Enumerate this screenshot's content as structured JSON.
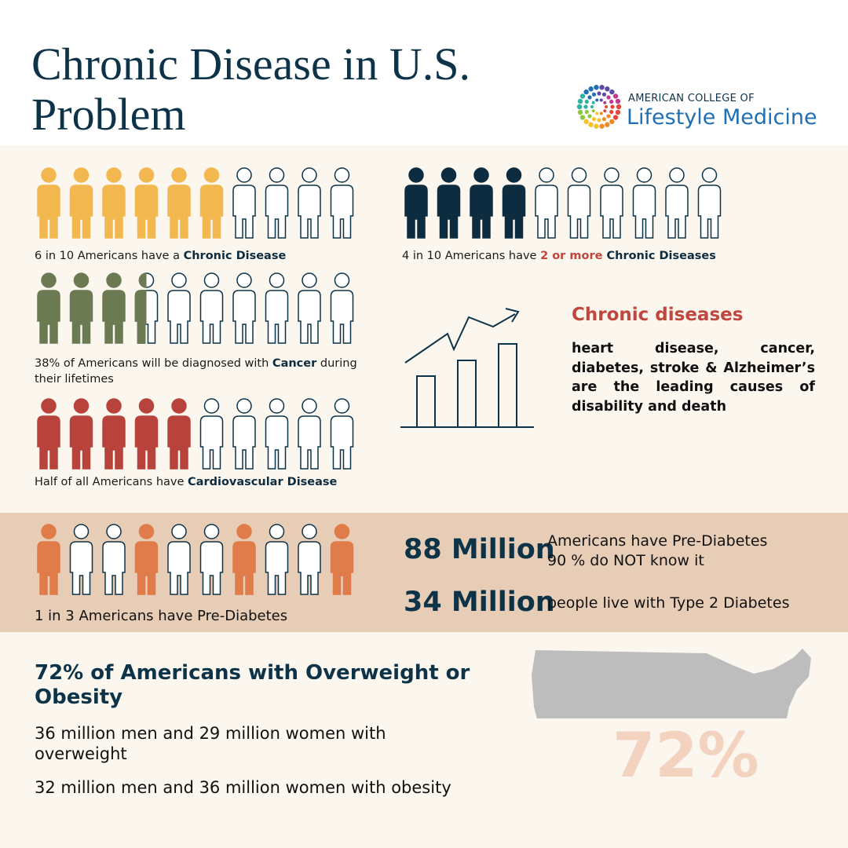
{
  "header": {
    "title_lines": [
      "Chronic Disease in U.S.",
      "Problem"
    ],
    "logo": {
      "line1": "AMERICAN COLLEGE OF",
      "line2": "Lifestyle Medicine"
    }
  },
  "stats": [
    {
      "caption": [
        "6 in 10 Americans have a ",
        "Chronic Disease"
      ]
    },
    {
      "caption": [
        "4 in 10 Americans have ",
        "2 or more",
        " Chronic Diseases"
      ]
    },
    {
      "caption": [
        "38% of Americans will be diagnosed with ",
        "Cancer",
        " during their lifetimes"
      ]
    },
    {
      "caption": [
        "Half of all Americans have ",
        "Cardiovascular Disease"
      ]
    }
  ],
  "chronic": {
    "heading": "Chronic diseases",
    "text": "heart disease, cancer, diabetes, stroke & Alzheimer’s are the leading causes of disability and death"
  },
  "diabetes": {
    "caption": "1 in 3 Americans have Pre-Diabetes",
    "facts": [
      {
        "figure": "88 Million",
        "lines": [
          "Americans have Pre-Diabetes",
          "90 % do NOT know it"
        ]
      },
      {
        "figure": "34 Million",
        "lines": [
          "people live with Type 2 Diabetes"
        ]
      }
    ]
  },
  "obesity": {
    "heading": "72% of Americans with Overweight or Obesity",
    "lines": [
      "36 million men and 29 million women with overweight",
      "32 million men and 36 million women with obesity"
    ],
    "map_label": "72%"
  }
}
